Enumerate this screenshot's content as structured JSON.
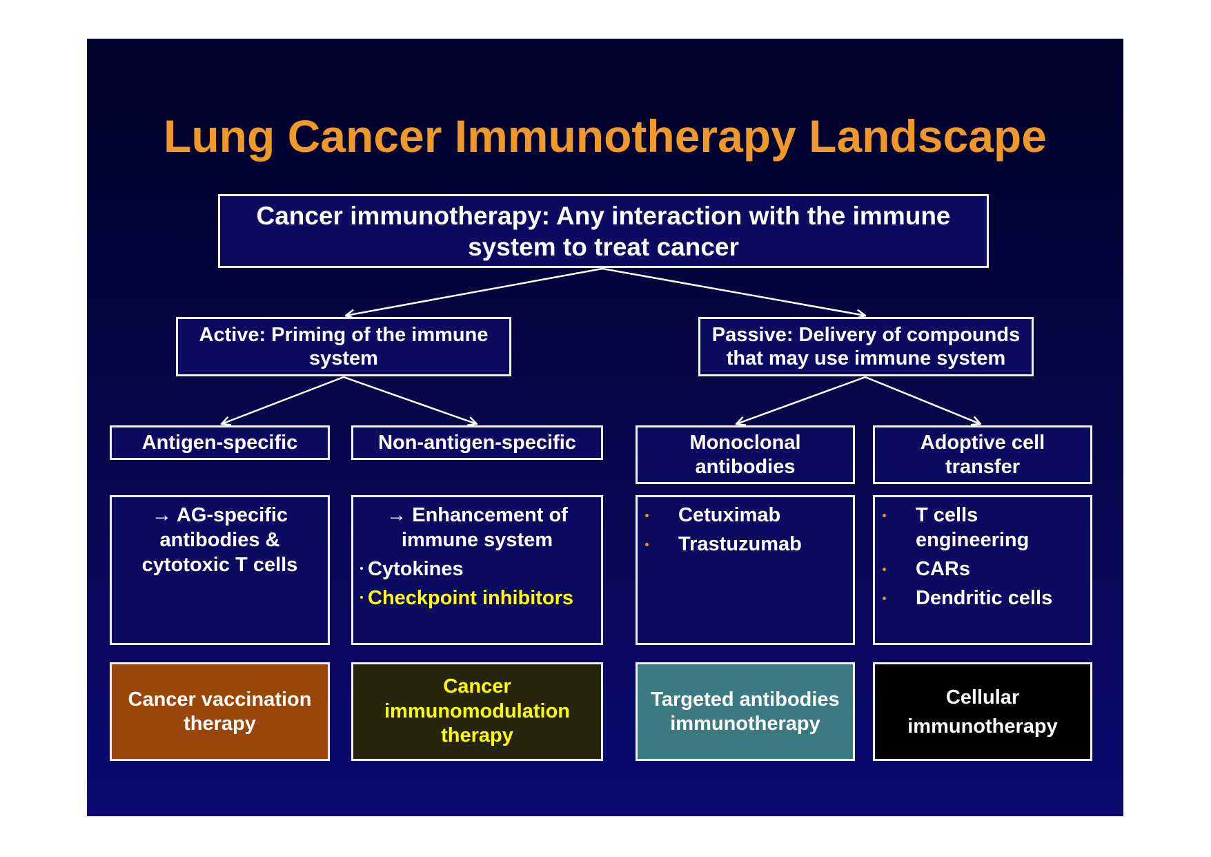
{
  "title": "Lung Cancer Immunotherapy Landscape",
  "root": {
    "lines": [
      "Cancer immunotherapy: Any interaction with the immune",
      "system to treat cancer"
    ]
  },
  "active": {
    "lines": [
      "Active: Priming of the immune",
      "system"
    ]
  },
  "passive": {
    "lines": [
      "Passive: Delivery of compounds",
      "that may use immune system"
    ]
  },
  "columns": [
    {
      "header": [
        "Antigen-specific"
      ],
      "intro": [
        "→ AG-specific",
        "antibodies &",
        "cytotoxic T cells"
      ],
      "therapy": [
        "Cancer vaccination",
        "therapy"
      ],
      "therapy_bg": "#9a4509",
      "therapy_text": "#ffffff"
    },
    {
      "header": [
        "Non-antigen-specific"
      ],
      "intro": [
        "→ Enhancement of",
        "immune system"
      ],
      "bullets": [
        "Cytokines",
        "Checkpoint inhibitors"
      ],
      "therapy": [
        "Cancer",
        "immunomodulation",
        "therapy"
      ],
      "therapy_bg": "#28250f",
      "therapy_text": "#ffff00"
    },
    {
      "header": [
        "Monoclonal",
        "antibodies"
      ],
      "bullets": [
        "Cetuximab",
        "Trastuzumab"
      ],
      "therapy": [
        "Targeted antibodies",
        "immunotherapy"
      ],
      "therapy_bg": "#3b7a80",
      "therapy_text": "#ffffff"
    },
    {
      "header": [
        "Adoptive cell",
        "transfer"
      ],
      "bullets": [
        "T cells engineering",
        "CARs",
        "Dendritic cells"
      ],
      "therapy": [
        "Cellular",
        "immunotherapy"
      ],
      "therapy_bg": "#000000",
      "therapy_text": "#ffffff"
    }
  ],
  "colors": {
    "title": "#f0982a",
    "slide_top": "#02022c",
    "slide_bottom": "#0b0b72",
    "box_fill": "#0b0b62",
    "border": "#f2f2f2",
    "highlight_text": "#ffff00",
    "bullet": "#e8922f"
  }
}
